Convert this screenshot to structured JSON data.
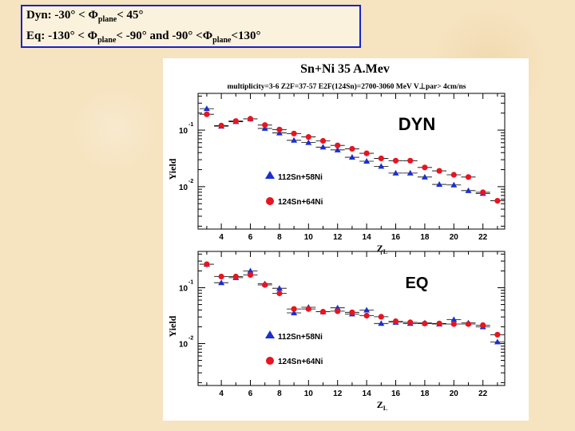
{
  "header": {
    "line1": {
      "prefix": "Dyn:   -30° < ",
      "phi": "Φ",
      "sub": "plane",
      "suffix": "< 45°"
    },
    "line2": {
      "prefix": "Eq:   -130° < ",
      "phi": "Φ",
      "sub": "plane",
      "mid": "< -90° and -90° <",
      "phi2": "Φ",
      "sub2": "plane",
      "suffix": "<130°"
    }
  },
  "figure": {
    "title": "Sn+Ni 35 A.Mev",
    "subtitle": "multiplicity=3-6  Z2F=37-57  E2F(124Sn)=2700-3060 MeV  V⊥par> 4cm/ns",
    "legend": {
      "triangle_label": "112Sn+58Ni",
      "circle_label": "124Sn+64Ni"
    },
    "colors": {
      "blue": "#1a2fd0",
      "red": "#e8141e"
    }
  },
  "chart_data": [
    {
      "type": "scatter",
      "label": "DYN",
      "xlabel": "ZL",
      "ylabel": "Yield",
      "ylog": true,
      "ylim_log10": [
        -2.75,
        -0.35
      ],
      "xlim": [
        2.4,
        23.5
      ],
      "x_ticks": [
        4,
        6,
        8,
        10,
        12,
        14,
        16,
        18,
        20,
        22
      ],
      "y_ticks": [
        {
          "label": "10",
          "exp": "-1"
        },
        {
          "label": "10",
          "exp": "-2"
        }
      ],
      "series": [
        {
          "name": "112Sn+58Ni",
          "marker": "triangle",
          "color": "#1a2fd0",
          "x": [
            3,
            4,
            5,
            6,
            7,
            8,
            9,
            10,
            11,
            12,
            13,
            14,
            15,
            16,
            17,
            18,
            19,
            20,
            21,
            22
          ],
          "log10": [
            -0.62,
            -0.93,
            -0.85,
            -0.8,
            -0.97,
            -1.05,
            -1.18,
            -1.22,
            -1.3,
            -1.35,
            -1.48,
            -1.55,
            -1.64,
            -1.76,
            -1.76,
            -1.83,
            -1.96,
            -1.97,
            -2.07,
            -2.12
          ]
        },
        {
          "name": "124Sn+64Ni",
          "marker": "circle",
          "color": "#e8141e",
          "x": [
            3,
            4,
            5,
            6,
            7,
            8,
            9,
            10,
            11,
            12,
            13,
            14,
            15,
            16,
            17,
            18,
            19,
            20,
            21,
            22,
            23
          ],
          "log10": [
            -0.72,
            -0.92,
            -0.84,
            -0.8,
            -0.91,
            -0.99,
            -1.06,
            -1.12,
            -1.19,
            -1.27,
            -1.33,
            -1.41,
            -1.5,
            -1.54,
            -1.54,
            -1.66,
            -1.72,
            -1.79,
            -1.83,
            -2.1,
            -2.25
          ]
        }
      ]
    },
    {
      "type": "scatter",
      "label": "EQ",
      "xlabel": "ZL",
      "ylabel": "Yield",
      "ylog": true,
      "ylim_log10": [
        -2.75,
        -0.35
      ],
      "xlim": [
        2.4,
        23.5
      ],
      "x_ticks": [
        4,
        6,
        8,
        10,
        12,
        14,
        16,
        18,
        20,
        22
      ],
      "y_ticks": [
        {
          "label": "10",
          "exp": "-1"
        },
        {
          "label": "10",
          "exp": "-2"
        }
      ],
      "series": [
        {
          "name": "112Sn+58Ni",
          "marker": "triangle",
          "color": "#1a2fd0",
          "x": [
            3,
            4,
            5,
            6,
            7,
            8,
            9,
            10,
            11,
            12,
            13,
            14,
            15,
            16,
            17,
            18,
            19,
            20,
            21,
            22,
            23
          ],
          "log10": [
            -0.58,
            -0.91,
            -0.82,
            -0.7,
            -0.93,
            -1.01,
            -1.45,
            -1.35,
            -1.43,
            -1.36,
            -1.47,
            -1.4,
            -1.64,
            -1.62,
            -1.64,
            -1.63,
            -1.65,
            -1.57,
            -1.63,
            -1.7,
            -1.97
          ]
        },
        {
          "name": "124Sn+64Ni",
          "marker": "circle",
          "color": "#e8141e",
          "x": [
            3,
            4,
            5,
            6,
            7,
            8,
            9,
            10,
            11,
            12,
            13,
            14,
            15,
            16,
            17,
            18,
            19,
            20,
            21,
            22,
            23
          ],
          "log10": [
            -0.58,
            -0.8,
            -0.8,
            -0.77,
            -0.95,
            -1.1,
            -1.38,
            -1.38,
            -1.43,
            -1.42,
            -1.44,
            -1.5,
            -1.52,
            -1.6,
            -1.62,
            -1.64,
            -1.64,
            -1.65,
            -1.65,
            -1.67,
            -1.84
          ]
        }
      ]
    }
  ]
}
